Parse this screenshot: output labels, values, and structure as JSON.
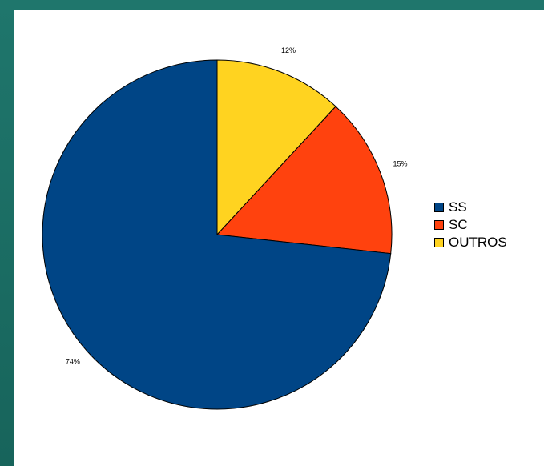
{
  "chart_data": {
    "type": "pie",
    "title": "",
    "legend_position": "right",
    "start_angle_deg": 0,
    "direction": "clockwise",
    "slices": [
      {
        "name": "OUTROS",
        "value": 12,
        "label": "12%",
        "color": "#FFD320"
      },
      {
        "name": "SC",
        "value": 15,
        "label": "15%",
        "color": "#FF420E"
      },
      {
        "name": "SS",
        "value": 74,
        "label": "74%",
        "color": "#004586"
      }
    ]
  },
  "legend": {
    "items": [
      {
        "label": "SS",
        "color": "#004586"
      },
      {
        "label": "SC",
        "color": "#FF420E"
      },
      {
        "label": "OUTROS",
        "color": "#FFD320"
      }
    ]
  }
}
